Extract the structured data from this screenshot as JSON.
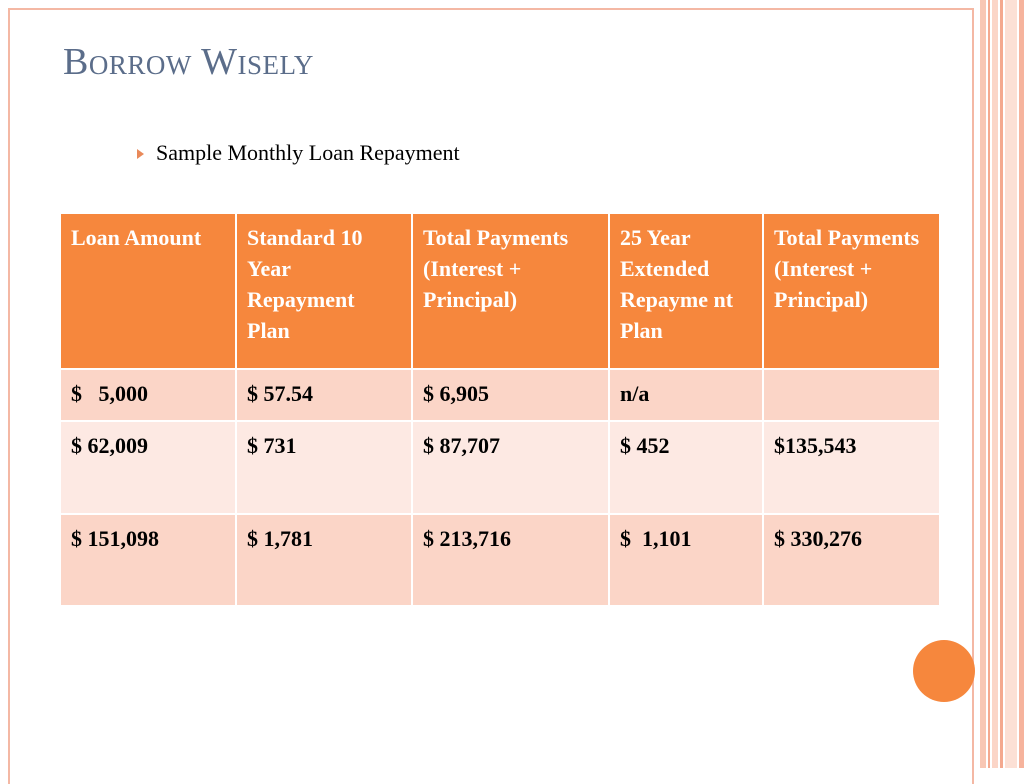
{
  "slide": {
    "title": "Borrow Wisely",
    "bullet": "Sample Monthly Loan Repayment"
  },
  "table": {
    "headers": [
      "Loan Amount",
      "Standard 10 Year Repayment Plan",
      "Total Payments (Interest + Principal)",
      "25 Year Extended Repayme nt Plan",
      "Total Payments (Interest + Principal)"
    ],
    "rows": [
      [
        "$   5,000",
        "$ 57.54",
        "$ 6,905",
        "n/a",
        ""
      ],
      [
        "$ 62,009",
        "$ 731",
        "$ 87,707",
        "$ 452",
        "$135,543"
      ],
      [
        "$ 151,098",
        "$ 1,781",
        "$ 213,716",
        "$  1,101",
        "$ 330,276"
      ]
    ]
  },
  "colors": {
    "accent": "#f6873d",
    "title": "#5b6d8a",
    "row_dark": "#fbd5c7",
    "row_light": "#fde9e3"
  },
  "icons": {
    "bullet": "arrowhead-bullet-icon",
    "decoration": "orange-circle"
  }
}
